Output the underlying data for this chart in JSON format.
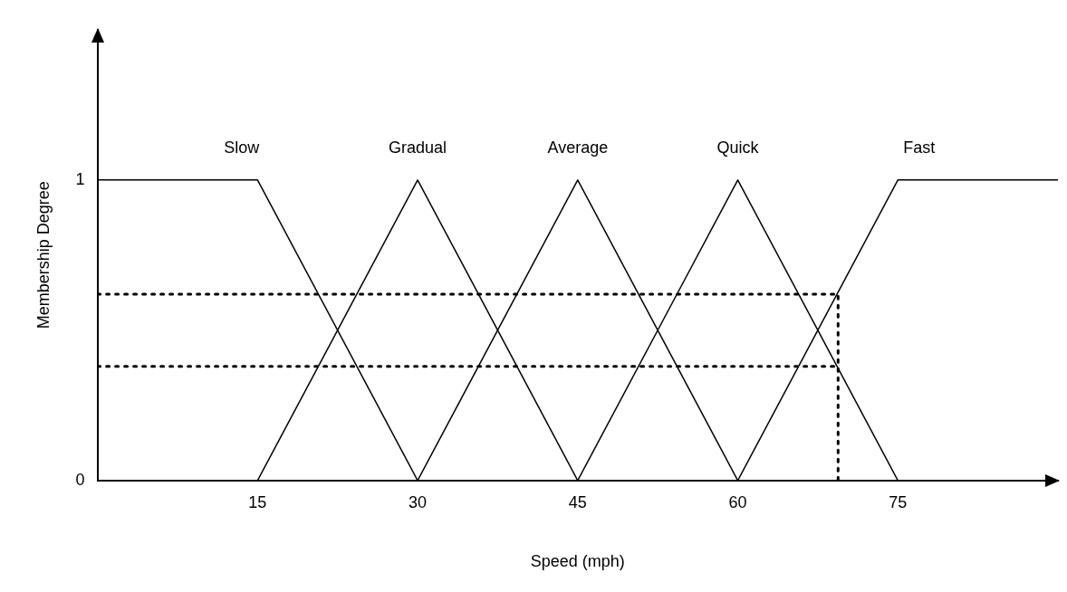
{
  "chart_data": {
    "type": "line",
    "xlabel": "Speed (mph)",
    "ylabel": "Membership Degree",
    "xlim": [
      0,
      90
    ],
    "ylim": [
      0,
      1.5
    ],
    "xticks": [
      15,
      30,
      45,
      60,
      75
    ],
    "yticks": [
      0,
      1
    ],
    "grid": false,
    "legend": false,
    "marker": "none",
    "series": [
      {
        "name": "Slow",
        "color": "#000000",
        "x": [
          0,
          15,
          30
        ],
        "values": [
          1,
          1,
          0
        ]
      },
      {
        "name": "Gradual",
        "color": "#000000",
        "x": [
          15,
          30,
          45
        ],
        "values": [
          0,
          1,
          0
        ]
      },
      {
        "name": "Average",
        "color": "#000000",
        "x": [
          30,
          45,
          60
        ],
        "values": [
          0,
          1,
          0
        ]
      },
      {
        "name": "Quick",
        "color": "#000000",
        "x": [
          45,
          60,
          75
        ],
        "values": [
          0,
          1,
          0
        ]
      },
      {
        "name": "Fast",
        "color": "#000000",
        "x": [
          60,
          75,
          90
        ],
        "values": [
          0,
          1,
          1
        ]
      },
      {
        "color": "#000000",
        "line_style": "dotted",
        "x": [
          0,
          69.4,
          69.4
        ],
        "values": [
          0.62,
          0.62,
          0
        ]
      },
      {
        "color": "#000000",
        "line_style": "dotted",
        "x": [
          0,
          69.4
        ],
        "values": [
          0.38,
          0.38
        ]
      }
    ]
  }
}
